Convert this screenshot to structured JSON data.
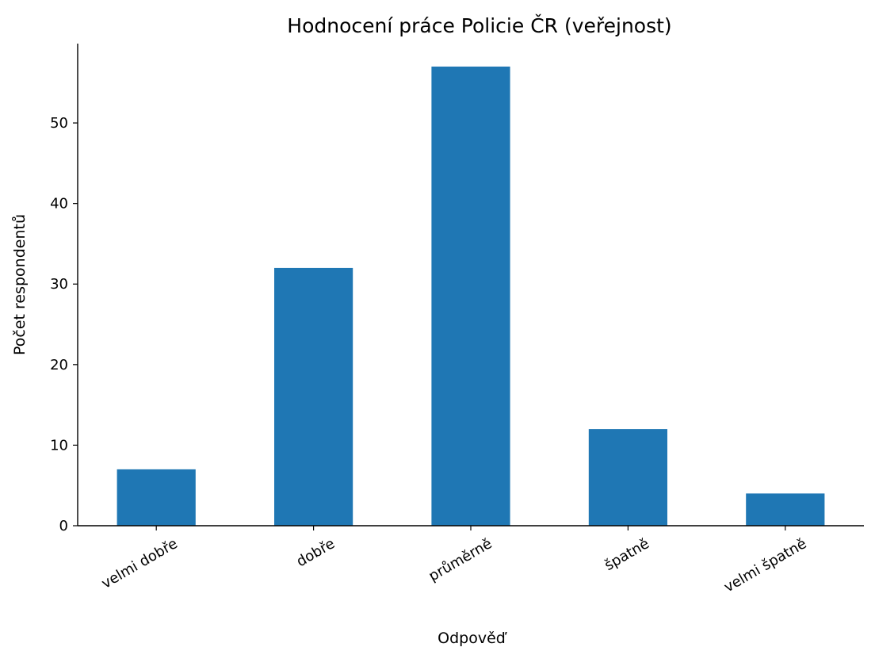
{
  "chart_data": {
    "type": "bar",
    "title": "Hodnocení práce Policie ČR (veřejnost)",
    "xlabel": "Odpověď",
    "ylabel": "Počet respondentů",
    "categories": [
      "velmi dobře",
      "dobře",
      "průměrně",
      "špatně",
      "velmi špatně"
    ],
    "values": [
      7,
      32,
      57,
      12,
      4
    ],
    "ylim": [
      0,
      59.85
    ],
    "yticks": [
      0,
      10,
      20,
      30,
      40,
      50
    ],
    "grid": false,
    "bar_color": "#1f77b4"
  }
}
